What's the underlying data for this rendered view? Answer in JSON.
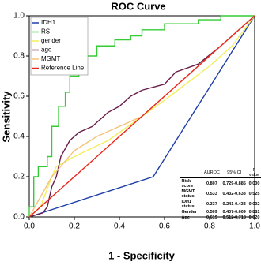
{
  "chart_data": {
    "type": "line",
    "title": "ROC Curve",
    "x_label": "1 - Specificity",
    "y_label": "Sensitivity",
    "xlim": [
      0,
      1
    ],
    "ylim": [
      0,
      1
    ],
    "xticks": [
      {
        "value": 0,
        "label": "0.0"
      },
      0.2,
      0.4,
      0.6,
      0.8,
      {
        "value": 1,
        "label": "1.0"
      }
    ],
    "yticks": [
      {
        "value": 0,
        "label": "0.0"
      },
      0.2,
      0.4,
      0.6,
      0.8,
      {
        "value": 1,
        "label": "1.0"
      }
    ],
    "legend": "upper left",
    "series": [
      {
        "name": "IDH1",
        "color": "#1f3fa8",
        "x": [
          0,
          0.55,
          1
        ],
        "values": [
          0,
          0.2,
          1
        ]
      },
      {
        "name": "RS",
        "color": "#33cc33",
        "x": [
          0,
          0,
          0.02,
          0.02,
          0.04,
          0.04,
          0.08,
          0.08,
          0.1,
          0.1,
          0.13,
          0.13,
          0.16,
          0.16,
          0.18,
          0.18,
          0.22,
          0.22,
          0.25,
          0.25,
          0.3,
          0.3,
          0.38,
          0.38,
          0.45,
          0.45,
          0.5,
          0.5,
          0.6,
          0.6,
          0.75,
          0.75,
          0.85,
          0.85,
          1
        ],
        "values": [
          0,
          0.05,
          0.05,
          0.2,
          0.2,
          0.25,
          0.25,
          0.3,
          0.3,
          0.45,
          0.45,
          0.55,
          0.55,
          0.62,
          0.62,
          0.7,
          0.7,
          0.75,
          0.75,
          0.8,
          0.8,
          0.85,
          0.85,
          0.88,
          0.88,
          0.9,
          0.9,
          0.93,
          0.93,
          0.96,
          0.96,
          0.98,
          0.98,
          1,
          1
        ]
      },
      {
        "name": "gender",
        "color": "#f2ee5a",
        "x": [
          0,
          0.05,
          0.1,
          0.12,
          0.2,
          0.35,
          0.5,
          0.6,
          0.8,
          0.9,
          1
        ],
        "values": [
          0,
          0.05,
          0.2,
          0.25,
          0.3,
          0.38,
          0.5,
          0.58,
          0.75,
          0.85,
          1
        ]
      },
      {
        "name": "age",
        "color": "#6b1f4a",
        "x": [
          0,
          0.06,
          0.08,
          0.09,
          0.1,
          0.12,
          0.14,
          0.18,
          0.22,
          0.28,
          0.35,
          0.4,
          0.45,
          0.5,
          0.6,
          0.65,
          0.75,
          0.85,
          0.92,
          1
        ],
        "values": [
          0,
          0.02,
          0.05,
          0.1,
          0.15,
          0.2,
          0.3,
          0.38,
          0.42,
          0.45,
          0.52,
          0.55,
          0.6,
          0.63,
          0.66,
          0.72,
          0.76,
          0.85,
          0.92,
          1
        ]
      },
      {
        "name": "MGMT",
        "color": "#f4c27a",
        "x": [
          0,
          0.1,
          0.2,
          0.3,
          0.5,
          0.7,
          0.9,
          1
        ],
        "values": [
          0,
          0.2,
          0.33,
          0.4,
          0.5,
          0.7,
          0.9,
          1
        ]
      },
      {
        "name": "Reference Line",
        "color": "#e8281e",
        "x": [
          0,
          1
        ],
        "values": [
          0,
          1
        ]
      }
    ]
  },
  "table": {
    "header": [
      "AUROC",
      "95% CI",
      "P value"
    ],
    "rows": [
      [
        "Risk score",
        "0.807",
        "0.729-0.885",
        "0.000"
      ],
      [
        "MGMT status",
        "0.533",
        "0.432-0.633",
        "0.525"
      ],
      [
        "IDH1 status",
        "0.337",
        "0.241-0.433",
        "0.002"
      ],
      [
        "Gender",
        "0.509",
        "0.407-0.609",
        "0.881"
      ],
      [
        "Age",
        "0.619",
        "0.512-0.718",
        "0.020"
      ]
    ]
  }
}
